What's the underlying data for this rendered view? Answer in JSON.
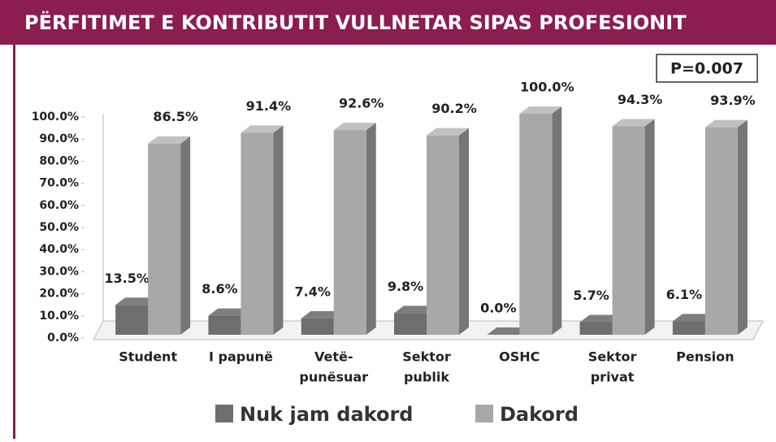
{
  "chart_data": {
    "type": "bar3d",
    "title": "PËRFITIMET E KONTRIBUTIT VULLNETAR SIPAS PROFESIONIT",
    "annotation": "P=0.007",
    "categories": [
      [
        "Student"
      ],
      [
        "I papunë"
      ],
      [
        "Vetë-",
        "punësuar"
      ],
      [
        "Sektor",
        "publik"
      ],
      [
        "OSHC"
      ],
      [
        "Sektor",
        "privat"
      ],
      [
        "Pension"
      ]
    ],
    "series": [
      {
        "name": "Nuk jam dakord",
        "color": "#6e6e6e",
        "values": [
          13.5,
          8.6,
          7.4,
          9.8,
          0.0,
          5.7,
          6.1
        ],
        "value_labels": [
          "13.5%",
          "8.6%",
          "7.4%",
          "9.8%",
          "0.0%",
          "5.7%",
          "6.1%"
        ]
      },
      {
        "name": "Dakord",
        "color": "#a8a8a8",
        "values": [
          86.5,
          91.4,
          92.6,
          90.2,
          100.0,
          94.3,
          93.9
        ],
        "value_labels": [
          "86.5%",
          "91.4%",
          "92.6%",
          "90.2%",
          "100.0%",
          "94.3%",
          "93.9%"
        ]
      }
    ],
    "ylim": [
      0,
      100
    ],
    "yticks": [
      {
        "value": 0,
        "label": "0.0%"
      },
      {
        "value": 10,
        "label": "10.0%"
      },
      {
        "value": 20,
        "label": "20.0%"
      },
      {
        "value": 30,
        "label": "30.0%"
      },
      {
        "value": 40,
        "label": "40.0%"
      },
      {
        "value": 50,
        "label": "50.0%"
      },
      {
        "value": 60,
        "label": "60.0%"
      },
      {
        "value": 70,
        "label": "70.0%"
      },
      {
        "value": 80,
        "label": "80.0%"
      },
      {
        "value": 90,
        "label": "90.0%"
      },
      {
        "value": 100,
        "label": "100.0%"
      }
    ],
    "legend": "bottom"
  }
}
